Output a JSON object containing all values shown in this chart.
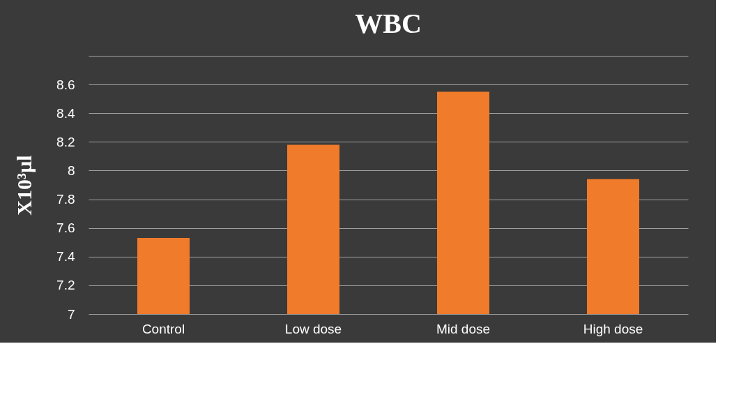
{
  "chart_data": {
    "type": "bar",
    "title": "WBC",
    "ylabel": "X10³µl",
    "categories": [
      "Control",
      "Low dose",
      "Mid dose",
      "High dose"
    ],
    "values": [
      7.53,
      8.18,
      8.55,
      7.94
    ],
    "color": "#f07b2a",
    "ylim": [
      7,
      8.8
    ],
    "yticks": [
      7,
      7.2,
      7.4,
      7.6,
      7.8,
      8,
      8.2,
      8.4,
      8.6,
      {
        "value": 8.8,
        "label": null
      }
    ],
    "grid": "y"
  }
}
